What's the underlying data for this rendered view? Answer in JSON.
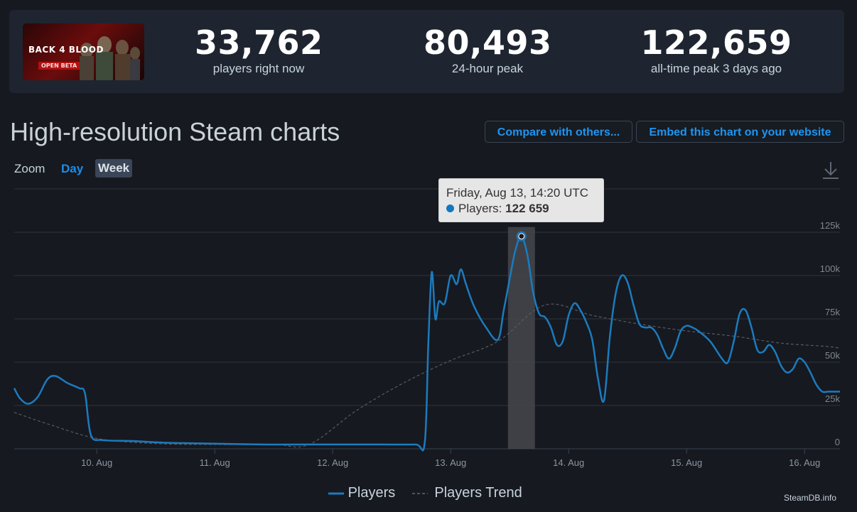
{
  "header": {
    "game_logo_text": "BACK 4 BLOOD",
    "game_badge": "OPEN BETA",
    "stats": [
      {
        "value": "33,762",
        "label": "players right now"
      },
      {
        "value": "80,493",
        "label": "24-hour peak"
      },
      {
        "value": "122,659",
        "label": "all-time peak 3 days ago"
      }
    ]
  },
  "page": {
    "title": "High-resolution Steam charts",
    "compare_button": "Compare with others...",
    "embed_button": "Embed this chart on your website"
  },
  "zoom": {
    "label": "Zoom",
    "options": [
      "Day",
      "Week"
    ],
    "selected": "Week"
  },
  "tooltip": {
    "date": "Friday, Aug 13, 14:20 UTC",
    "series": "Players:",
    "value": "122 659"
  },
  "legend": {
    "players": "Players",
    "trend": "Players Trend"
  },
  "credit": "SteamDB.info",
  "colors": {
    "players": "#1b7bbf",
    "trend": "#555a62",
    "accent": "#1e95f0"
  },
  "chart_data": {
    "type": "line",
    "x_unit": "days, Aug (UTC)",
    "x_ticks": [
      {
        "day": 10,
        "label": "10. Aug"
      },
      {
        "day": 11,
        "label": "11. Aug"
      },
      {
        "day": 12,
        "label": "12. Aug"
      },
      {
        "day": 13,
        "label": "13. Aug"
      },
      {
        "day": 14,
        "label": "14. Aug"
      },
      {
        "day": 15,
        "label": "15. Aug"
      },
      {
        "day": 16,
        "label": "16. Aug"
      }
    ],
    "xlim": [
      9.3,
      16.3
    ],
    "y_ticks": [
      {
        "value": 0,
        "label": "0"
      },
      {
        "value": 25000,
        "label": "25k"
      },
      {
        "value": 50000,
        "label": "50k"
      },
      {
        "value": 75000,
        "label": "75k"
      },
      {
        "value": 100000,
        "label": "100k"
      },
      {
        "value": 125000,
        "label": "125k"
      }
    ],
    "ylim": [
      0,
      150000
    ],
    "highlight": {
      "day": 13.6,
      "value": 122659
    },
    "series": [
      {
        "name": "Players",
        "x": [
          9.3,
          9.35,
          9.42,
          9.5,
          9.58,
          9.65,
          9.75,
          9.85,
          9.9,
          9.95,
          10.05,
          10.3,
          10.6,
          11,
          11.4,
          11.8,
          12,
          12.4,
          12.7,
          12.78,
          12.81,
          12.84,
          12.87,
          12.9,
          12.95,
          13.0,
          13.05,
          13.08,
          13.1,
          13.13,
          13.2,
          13.3,
          13.4,
          13.45,
          13.5,
          13.55,
          13.6,
          13.65,
          13.7,
          13.75,
          13.8,
          13.85,
          13.9,
          13.95,
          14.0,
          14.05,
          14.1,
          14.15,
          14.2,
          14.25,
          14.3,
          14.35,
          14.4,
          14.45,
          14.5,
          14.55,
          14.6,
          14.65,
          14.7,
          14.75,
          14.8,
          14.85,
          14.9,
          14.95,
          15.0,
          15.05,
          15.1,
          15.2,
          15.3,
          15.35,
          15.4,
          15.45,
          15.5,
          15.55,
          15.6,
          15.65,
          15.7,
          15.75,
          15.8,
          15.85,
          15.9,
          15.95,
          16.0,
          16.05,
          16.1,
          16.15,
          16.2,
          16.25,
          16.3
        ],
        "values": [
          35000,
          29000,
          26000,
          30000,
          40000,
          42000,
          38000,
          35000,
          32000,
          8000,
          5000,
          4500,
          3500,
          3000,
          2500,
          2500,
          2500,
          2500,
          2500,
          3500,
          60000,
          102000,
          75000,
          85000,
          84000,
          100000,
          95000,
          103000,
          102000,
          95000,
          82000,
          70000,
          63000,
          80000,
          98000,
          115000,
          122659,
          112000,
          90000,
          78000,
          76000,
          70000,
          60000,
          62000,
          77000,
          84000,
          80000,
          73000,
          63000,
          40000,
          28000,
          65000,
          90000,
          100000,
          96000,
          83000,
          72000,
          70000,
          70000,
          66000,
          58000,
          52000,
          58000,
          68000,
          71000,
          70000,
          68000,
          62000,
          52000,
          50000,
          62000,
          78000,
          80000,
          70000,
          57000,
          56000,
          60000,
          56000,
          48000,
          44000,
          46000,
          52000,
          50000,
          44000,
          37000,
          33000,
          33000,
          33000,
          33000
        ]
      },
      {
        "name": "Players Trend",
        "x": [
          9.3,
          9.6,
          10.0,
          10.5,
          11.0,
          11.5,
          11.8,
          12.2,
          12.6,
          13.0,
          13.4,
          13.8,
          14.2,
          14.6,
          15.0,
          15.4,
          15.8,
          16.2,
          16.3
        ],
        "values": [
          21000,
          14000,
          6000,
          3000,
          2500,
          2500,
          2500,
          22000,
          38000,
          51000,
          62000,
          83000,
          77000,
          72000,
          68000,
          65000,
          61000,
          59000,
          58000
        ]
      }
    ]
  }
}
